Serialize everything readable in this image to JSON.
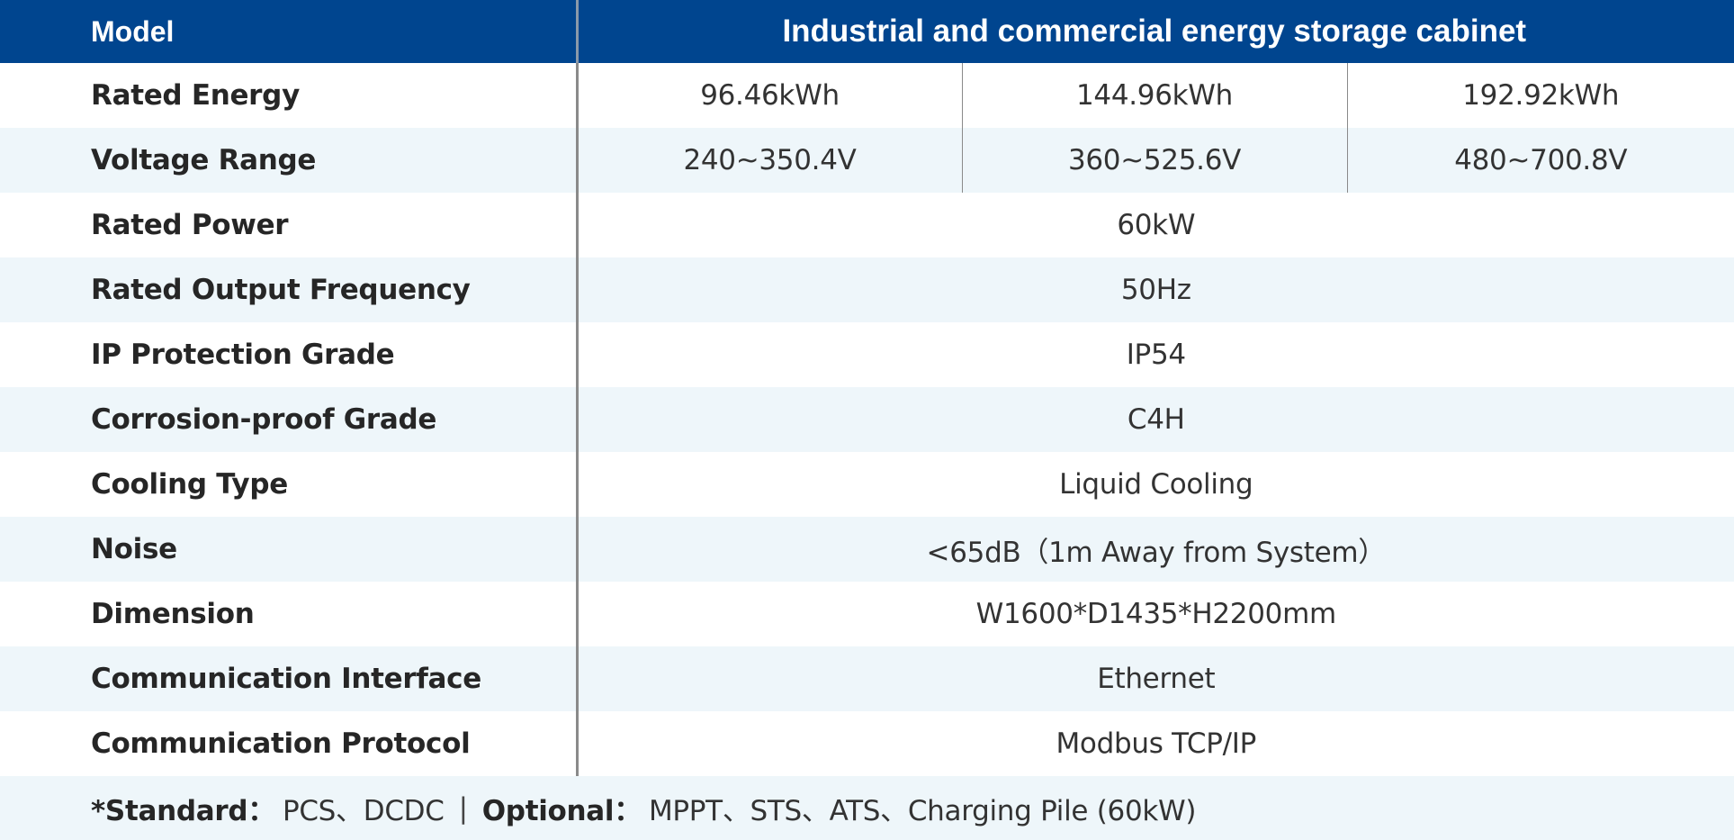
{
  "header": {
    "model_label": "Model",
    "title": "Industrial and commercial energy storage cabinet"
  },
  "rows": [
    {
      "label": "Rated Energy",
      "values": [
        "96.46kWh",
        "144.96kWh",
        "192.92kWh"
      ]
    },
    {
      "label": "Voltage Range",
      "values": [
        "240~350.4V",
        "360~525.6V",
        "480~700.8V"
      ]
    },
    {
      "label": "Rated Power",
      "value": "60kW"
    },
    {
      "label": "Rated Output Frequency",
      "value": "50Hz"
    },
    {
      "label": "IP Protection Grade",
      "value": "IP54"
    },
    {
      "label": "Corrosion-proof Grade",
      "value": "C4H"
    },
    {
      "label": "Cooling Type",
      "value": "Liquid Cooling"
    },
    {
      "label": "Noise",
      "value": "<65dB（1m Away from System）"
    },
    {
      "label": "Dimension",
      "value": "W1600*D1435*H2200mm"
    },
    {
      "label": "Communication Interface",
      "value": "Ethernet"
    },
    {
      "label": "Communication Protocol",
      "value": "Modbus TCP/IP"
    }
  ],
  "footnote": {
    "standard_label": "*Standard：",
    "standard_value": "PCS、DCDC",
    "separator": "|",
    "optional_label": "Optional：",
    "optional_value": "MPPT、STS、ATS、Charging Pile (60kW)"
  },
  "colors": {
    "header_bg": "#00458f",
    "header_text": "#ffffff",
    "stripe_bg": "#eef6fa",
    "divider": "#8a8a8a"
  }
}
